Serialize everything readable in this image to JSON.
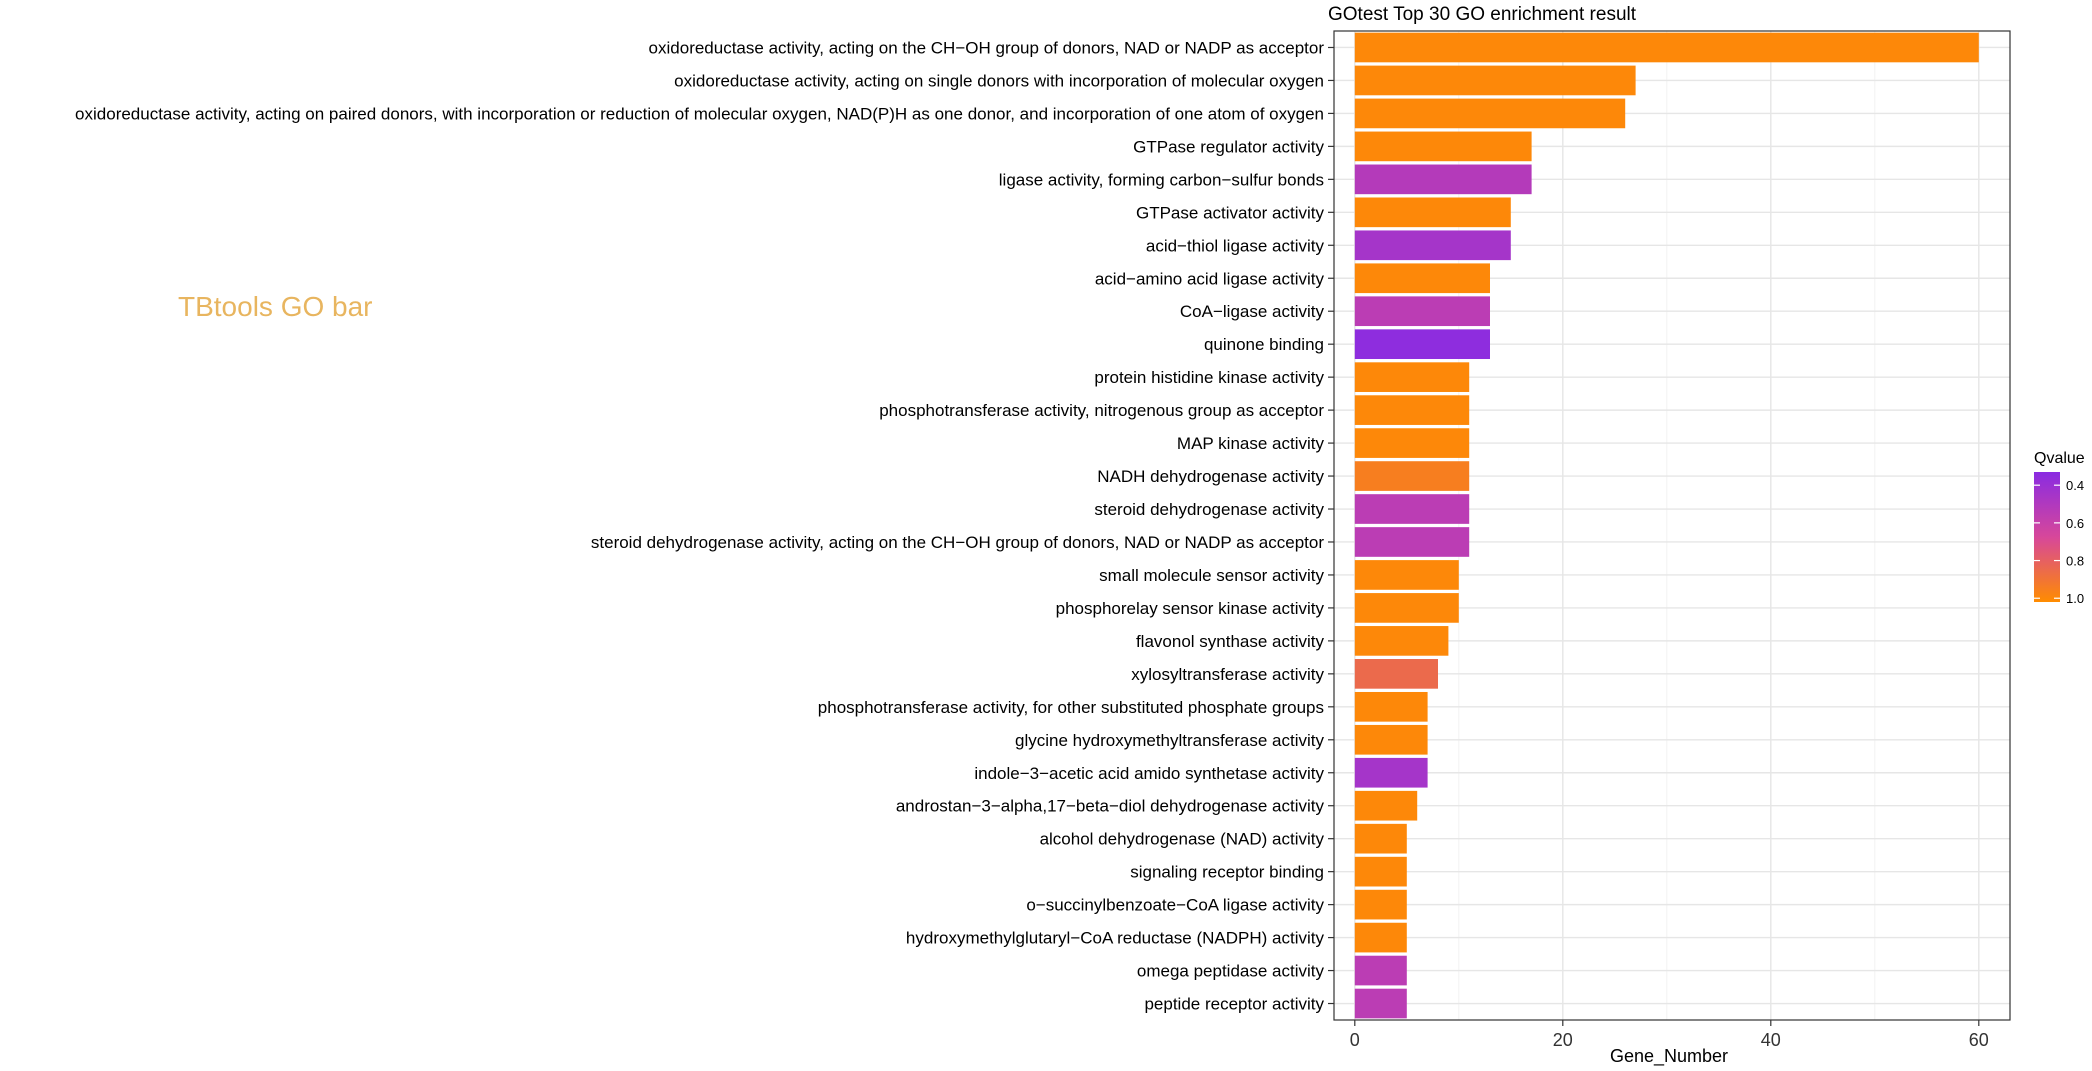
{
  "watermark": "TBtools GO bar",
  "chart_data": {
    "type": "bar",
    "orientation": "horizontal",
    "title": "GOtest Top 30 GO enrichment result",
    "xlabel": "Gene_Number",
    "ylabel": "",
    "xlim": [
      -2,
      63
    ],
    "xticks": [
      0,
      20,
      40,
      60
    ],
    "grid": true,
    "legend": {
      "title": "Qvalue",
      "position": "right",
      "ticks": [
        0.4,
        0.6,
        0.8,
        1.0
      ],
      "range": [
        0.33,
        1.02
      ],
      "low_color": "#8a2be2",
      "high_color": "#ff8c00"
    },
    "bars": [
      {
        "category": "oxidoreductase activity, acting on the CH−OH group of donors, NAD or NADP as acceptor",
        "value": 60,
        "qvalue": 1.0
      },
      {
        "category": "oxidoreductase activity, acting on single donors with incorporation of molecular oxygen",
        "value": 27,
        "qvalue": 1.0
      },
      {
        "category": "oxidoreductase activity, acting on paired donors, with incorporation or reduction of molecular oxygen, NAD(P)H as one donor, and incorporation of one atom of oxygen",
        "value": 26,
        "qvalue": 1.0
      },
      {
        "category": "GTPase regulator activity",
        "value": 17,
        "qvalue": 1.0
      },
      {
        "category": "ligase activity, forming carbon−sulfur bonds",
        "value": 17,
        "qvalue": 0.52
      },
      {
        "category": "GTPase activator activity",
        "value": 15,
        "qvalue": 1.0
      },
      {
        "category": "acid−thiol ligase activity",
        "value": 15,
        "qvalue": 0.45
      },
      {
        "category": "acid−amino acid ligase activity",
        "value": 13,
        "qvalue": 1.0
      },
      {
        "category": "CoA−ligase activity",
        "value": 13,
        "qvalue": 0.55
      },
      {
        "category": "quinone binding",
        "value": 13,
        "qvalue": 0.35
      },
      {
        "category": "protein histidine kinase activity",
        "value": 11,
        "qvalue": 1.0
      },
      {
        "category": "phosphotransferase activity, nitrogenous group as acceptor",
        "value": 11,
        "qvalue": 1.0
      },
      {
        "category": "MAP kinase activity",
        "value": 11,
        "qvalue": 1.0
      },
      {
        "category": "NADH dehydrogenase activity",
        "value": 11,
        "qvalue": 0.95
      },
      {
        "category": "steroid dehydrogenase activity",
        "value": 11,
        "qvalue": 0.55
      },
      {
        "category": "steroid dehydrogenase activity, acting on the CH−OH group of donors, NAD or NADP as acceptor",
        "value": 11,
        "qvalue": 0.55
      },
      {
        "category": "small molecule sensor activity",
        "value": 10,
        "qvalue": 1.0
      },
      {
        "category": "phosphorelay sensor kinase activity",
        "value": 10,
        "qvalue": 1.0
      },
      {
        "category": "flavonol synthase activity",
        "value": 9,
        "qvalue": 1.0
      },
      {
        "category": "xylosyltransferase activity",
        "value": 8,
        "qvalue": 0.85
      },
      {
        "category": "phosphotransferase activity, for other substituted phosphate groups",
        "value": 7,
        "qvalue": 1.0
      },
      {
        "category": "glycine hydroxymethyltransferase activity",
        "value": 7,
        "qvalue": 1.0
      },
      {
        "category": "indole−3−acetic acid amido synthetase activity",
        "value": 7,
        "qvalue": 0.45
      },
      {
        "category": "androstan−3−alpha,17−beta−diol dehydrogenase activity",
        "value": 6,
        "qvalue": 1.0
      },
      {
        "category": "alcohol dehydrogenase (NAD) activity",
        "value": 5,
        "qvalue": 1.0
      },
      {
        "category": "signaling receptor binding",
        "value": 5,
        "qvalue": 1.0
      },
      {
        "category": "o−succinylbenzoate−CoA ligase activity",
        "value": 5,
        "qvalue": 1.0
      },
      {
        "category": "hydroxymethylglutaryl−CoA reductase (NADPH) activity",
        "value": 5,
        "qvalue": 1.0
      },
      {
        "category": "omega peptidase activity",
        "value": 5,
        "qvalue": 0.55
      },
      {
        "category": "peptide receptor activity",
        "value": 5,
        "qvalue": 0.55
      }
    ]
  }
}
